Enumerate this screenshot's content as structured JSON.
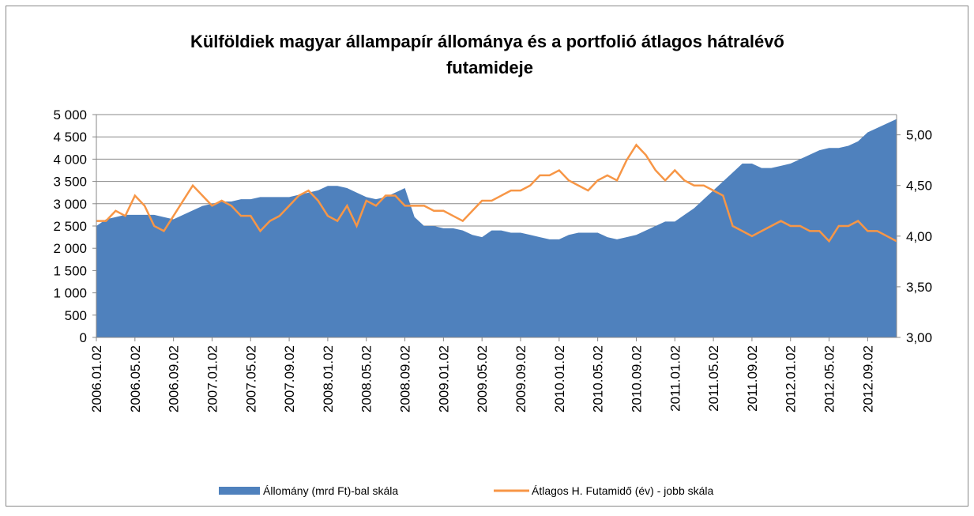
{
  "chart_data": {
    "type": "area_line",
    "title": "Külföldiek magyar állampapír állománya és a portfolió átlagos hátralévő futamideje",
    "categories": [
      "2006.01.02",
      null,
      null,
      null,
      "2006.05.02",
      null,
      null,
      null,
      "2006.09.02",
      null,
      null,
      null,
      "2007.01.02",
      null,
      null,
      null,
      "2007.05.02",
      null,
      null,
      null,
      "2007.09.02",
      null,
      null,
      null,
      "2008.01.02",
      null,
      null,
      null,
      "2008.05.02",
      null,
      null,
      null,
      "2008.09.02",
      null,
      null,
      null,
      "2009.01.02",
      null,
      null,
      null,
      "2009.05.02",
      null,
      null,
      null,
      "2009.09.02",
      null,
      null,
      null,
      "2010.01.02",
      null,
      null,
      null,
      "2010.05.02",
      null,
      null,
      null,
      "2010.09.02",
      null,
      null,
      null,
      "2011.01.02",
      null,
      null,
      null,
      "2011.05.02",
      null,
      null,
      null,
      "2011.09.02",
      null,
      null,
      null,
      "2012.01.02",
      null,
      null,
      null,
      "2012.05.02",
      null,
      null,
      null,
      "2012.09.02",
      null,
      null,
      null
    ],
    "series": [
      {
        "name": "Állomány (mrd Ft)-bal skála",
        "color": "#4f81bd",
        "axis": "y",
        "values": [
          2500,
          2650,
          2700,
          2750,
          2750,
          2750,
          2750,
          2700,
          2650,
          2750,
          2850,
          2950,
          3000,
          3050,
          3050,
          3100,
          3100,
          3150,
          3150,
          3150,
          3150,
          3200,
          3250,
          3300,
          3400,
          3400,
          3350,
          3250,
          3150,
          3100,
          3150,
          3250,
          3350,
          2700,
          2500,
          2500,
          2450,
          2450,
          2400,
          2300,
          2250,
          2400,
          2400,
          2350,
          2350,
          2300,
          2250,
          2200,
          2200,
          2300,
          2350,
          2350,
          2350,
          2250,
          2200,
          2250,
          2300,
          2400,
          2500,
          2600,
          2600,
          2750,
          2900,
          3100,
          3300,
          3500,
          3700,
          3900,
          3900,
          3800,
          3800,
          3850,
          3900,
          4000,
          4100,
          4200,
          4250,
          4250,
          4300,
          4400,
          4600,
          4700,
          4800,
          4900
        ]
      },
      {
        "name": "Átlagos H. Futamidő (év) - jobb skála",
        "color": "#f79646",
        "axis": "y2",
        "values": [
          4.15,
          4.15,
          4.25,
          4.2,
          4.4,
          4.3,
          4.1,
          4.05,
          4.2,
          4.35,
          4.5,
          4.4,
          4.3,
          4.35,
          4.3,
          4.2,
          4.2,
          4.05,
          4.15,
          4.2,
          4.3,
          4.4,
          4.45,
          4.35,
          4.2,
          4.15,
          4.3,
          4.1,
          4.35,
          4.3,
          4.4,
          4.4,
          4.3,
          4.3,
          4.3,
          4.25,
          4.25,
          4.2,
          4.15,
          4.25,
          4.35,
          4.35,
          4.4,
          4.45,
          4.45,
          4.5,
          4.6,
          4.6,
          4.65,
          4.55,
          4.5,
          4.45,
          4.55,
          4.6,
          4.55,
          4.75,
          4.9,
          4.8,
          4.65,
          4.55,
          4.65,
          4.55,
          4.5,
          4.5,
          4.45,
          4.4,
          4.1,
          4.05,
          4.0,
          4.05,
          4.1,
          4.15,
          4.1,
          4.1,
          4.05,
          4.05,
          3.95,
          4.1,
          4.1,
          4.15,
          4.05,
          4.05,
          4.0,
          3.95
        ]
      }
    ],
    "ylim": [
      0,
      5000
    ],
    "yticks": [
      0,
      500,
      {
        "value": 1000,
        "label": "1 000"
      },
      {
        "value": 1500,
        "label": "1 500"
      },
      {
        "value": 2000,
        "label": "2 000"
      },
      {
        "value": 2500,
        "label": "2 500"
      },
      {
        "value": 3000,
        "label": "3 000"
      },
      {
        "value": 3500,
        "label": "3 500"
      },
      {
        "value": 4000,
        "label": "4 000"
      },
      {
        "value": 4500,
        "label": "4 500"
      },
      {
        "value": 5000,
        "label": "5 000"
      }
    ],
    "y2lim": [
      3,
      5.2
    ],
    "y2ticks": [
      {
        "value": 3,
        "label": "3,00"
      },
      {
        "value": 3.5,
        "label": "3,50"
      },
      {
        "value": 4,
        "label": "4,00"
      },
      {
        "value": 4.5,
        "label": "4,50"
      },
      {
        "value": 5,
        "label": "5,00"
      }
    ],
    "grid": true,
    "legend": "bottom"
  }
}
